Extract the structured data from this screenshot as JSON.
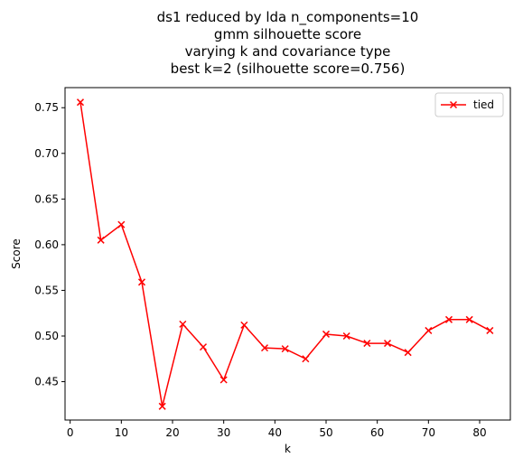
{
  "chart_data": {
    "type": "line",
    "title_lines": [
      "ds1 reduced by lda n_components=10",
      "gmm silhouette score",
      "varying k and covariance type",
      "best k=2 (silhouette score=0.756)"
    ],
    "xlabel": "k",
    "ylabel": "Score",
    "xlim": [
      -1.0,
      86.0
    ],
    "ylim": [
      0.408,
      0.772
    ],
    "xticks": [
      0,
      10,
      20,
      30,
      40,
      50,
      60,
      70,
      80
    ],
    "yticks": [
      0.45,
      0.5,
      0.55,
      0.6,
      0.65,
      0.7,
      0.75
    ],
    "ytick_labels": [
      "0.45",
      "0.50",
      "0.55",
      "0.60",
      "0.65",
      "0.70",
      "0.75"
    ],
    "legend_position": "top-right",
    "series": [
      {
        "name": "tied",
        "color": "#ff0000",
        "marker": "x",
        "x": [
          2,
          6,
          10,
          14,
          18,
          22,
          26,
          30,
          34,
          38,
          42,
          46,
          50,
          54,
          58,
          62,
          66,
          70,
          74,
          78,
          82
        ],
        "y": [
          0.756,
          0.605,
          0.622,
          0.559,
          0.423,
          0.513,
          0.488,
          0.452,
          0.512,
          0.487,
          0.486,
          0.475,
          0.502,
          0.5,
          0.492,
          0.492,
          0.482,
          0.506,
          0.518,
          0.518,
          0.506
        ]
      }
    ]
  }
}
